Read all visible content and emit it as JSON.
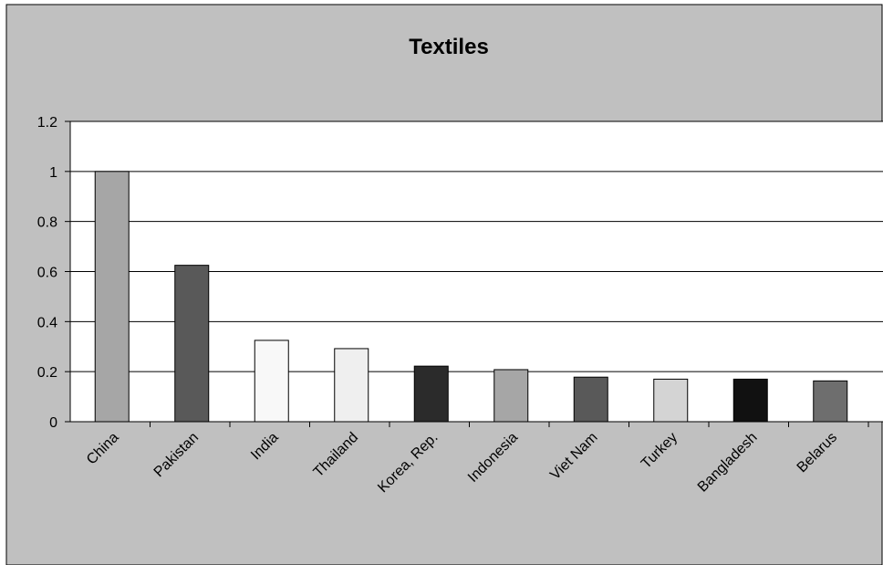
{
  "chart_data": {
    "type": "bar",
    "title": "Textiles",
    "xlabel": "",
    "ylabel": "",
    "categories": [
      "China",
      "Pakistan",
      "India",
      "Thailand",
      "Korea, Rep.",
      "Indonesia",
      "Viet Nam",
      "Turkey",
      "Bangladesh",
      "Belarus"
    ],
    "values": [
      1.0,
      0.625,
      0.325,
      0.292,
      0.222,
      0.208,
      0.178,
      0.17,
      0.17,
      0.163
    ],
    "bar_colors": [
      "#a6a6a6",
      "#595959",
      "#f8f8f8",
      "#efefef",
      "#2b2b2b",
      "#a6a6a6",
      "#595959",
      "#d4d4d4",
      "#111111",
      "#6e6e6e"
    ],
    "ylim": [
      0,
      1.2
    ],
    "yticks": [
      "0",
      "0.2",
      "0.4",
      "0.6",
      "0.8",
      "1",
      "1.2"
    ],
    "grid": true,
    "legend": "none"
  },
  "colors": {
    "outer_background": "#c0c0c0",
    "plot_background": "#ffffff",
    "gridline": "#000000"
  }
}
